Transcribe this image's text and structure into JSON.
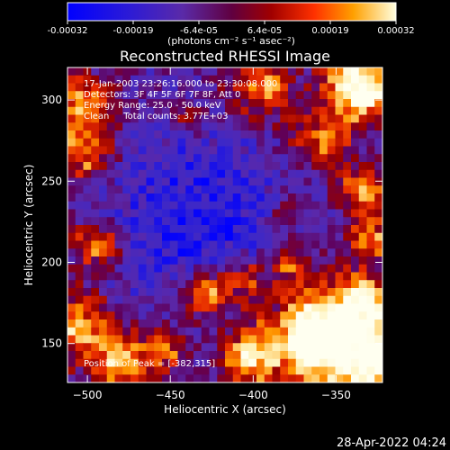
{
  "chart_data": {
    "type": "heatmap",
    "title": "Reconstructed RHESSI Image",
    "xlabel": "Heliocentric X (arcsec)",
    "ylabel": "Heliocentric Y (arcsec)",
    "xlim": [
      -512,
      -322
    ],
    "ylim": [
      126,
      320
    ],
    "x_ticks": [
      -500,
      -450,
      -400,
      -350
    ],
    "y_ticks": [
      150,
      200,
      250,
      300
    ],
    "colorbar": {
      "min": -0.00032,
      "max": 0.00032,
      "tick_labels": [
        "-0.00032",
        "-0.00019",
        "-6.4e-05",
        "6.4e-05",
        "0.00019",
        "0.00032"
      ],
      "unit_label": "(photons cm⁻² s⁻¹ asec⁻²)"
    },
    "annotations": {
      "time_range": "17-Jan-2003 23:26:16.000 to 23:30:08.000",
      "detectors": "Detectors: 3F 4F 5F 6F 7F 8F, Att 0",
      "energy_range": "Energy Range: 25.0 - 50.0 keV",
      "clean_counts": "Clean     Total counts: 3.77E+03",
      "peak_position": "Position of Peak = [-382,315]"
    },
    "grid_size": [
      40,
      40
    ],
    "peak_xy": [
      -382,
      315
    ]
  },
  "footer": {
    "timestamp": "28-Apr-2022 04:24"
  }
}
